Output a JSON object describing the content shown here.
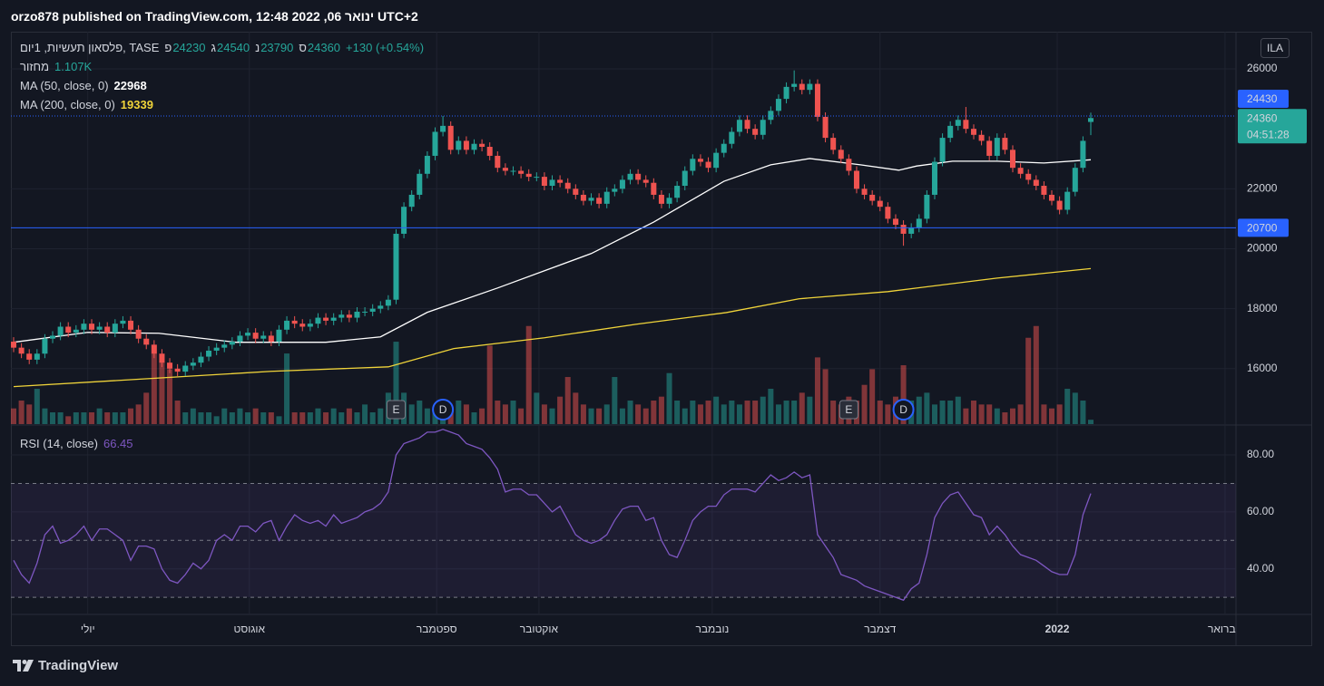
{
  "header": {
    "byline": "orzo878 published on TradingView.com, ינואר 06, 2022 12:48 UTC+2"
  },
  "footer": {
    "brand": "TradingView"
  },
  "chart_data": {
    "type": "candlestick",
    "symbol": "פלסאון תעשיות, 1יום, TASE",
    "ohlc_labels": [
      "פ",
      "ג",
      "נ",
      "ס"
    ],
    "change": "+130 (+0.54%)",
    "currency": "ILA",
    "countdown": "04:51:28",
    "colors": {
      "up": "#26a69a",
      "down": "#ef5350"
    },
    "xlim": [
      -0.35,
      156.6
    ],
    "xticks": [
      {
        "value": 9.5,
        "label": "יולי"
      },
      {
        "value": 30.2,
        "label": "אוגוסט"
      },
      {
        "value": 54.2,
        "label": "ספטמבר"
      },
      {
        "value": 67.3,
        "label": "אוקטובר"
      },
      {
        "value": 89.5,
        "label": "נובמבר"
      },
      {
        "value": 111,
        "label": "דצמבר"
      },
      {
        "value": 133.7,
        "label": "2022",
        "bold": true
      },
      {
        "value": 155.2,
        "label": "פברואר"
      }
    ],
    "ylim": [
      14150,
      27240
    ],
    "yticks": [
      16000,
      18000,
      20000,
      22000,
      26000
    ],
    "grid": true,
    "open": [
      16900,
      16700,
      16500,
      16300,
      16500,
      17000,
      17100,
      17400,
      17200,
      17300,
      17500,
      17300,
      17400,
      17200,
      17500,
      17600,
      17300,
      17000,
      16800,
      16500,
      16200,
      16000,
      15900,
      16100,
      16200,
      16400,
      16600,
      16700,
      16800,
      16900,
      17100,
      17200,
      17000,
      17100,
      16900,
      17300,
      17600,
      17500,
      17400,
      17500,
      17700,
      17600,
      17700,
      17800,
      17700,
      17900,
      17900,
      18000,
      18100,
      18300,
      20500,
      21400,
      21800,
      22500,
      23100,
      23900,
      24100,
      23300,
      23600,
      23300,
      23500,
      23400,
      23100,
      22700,
      22600,
      22600,
      22500,
      22400,
      22400,
      22100,
      22300,
      22200,
      22000,
      21800,
      21600,
      21700,
      21500,
      21900,
      22000,
      22300,
      22500,
      22300,
      22200,
      21800,
      21500,
      21700,
      22100,
      22600,
      23000,
      22900,
      22700,
      23200,
      23500,
      23900,
      24300,
      24000,
      23800,
      24300,
      24600,
      25000,
      25400,
      25500,
      25300,
      25500,
      24400,
      23700,
      23300,
      23000,
      22600,
      22000,
      21800,
      21600,
      21400,
      21000,
      20800,
      20500,
      20700,
      21000,
      21800,
      22900,
      23700,
      24100,
      24300,
      24000,
      23800,
      23600,
      23100,
      23700,
      23300,
      22700,
      22500,
      22300,
      22100,
      21800,
      21600,
      21300,
      21900,
      22700,
      24230
    ],
    "high": [
      17050,
      16850,
      16650,
      16650,
      17150,
      17250,
      17550,
      17550,
      17450,
      17650,
      17650,
      17550,
      17550,
      17650,
      17750,
      17750,
      17450,
      17150,
      16950,
      16650,
      16350,
      16150,
      16250,
      16350,
      16550,
      16750,
      16850,
      16950,
      17050,
      17250,
      17350,
      17350,
      17250,
      17250,
      17450,
      17750,
      17750,
      17650,
      17650,
      17850,
      17850,
      17850,
      17950,
      17950,
      18050,
      18050,
      18150,
      18250,
      18450,
      20650,
      21550,
      21950,
      22650,
      23250,
      24050,
      24430,
      24250,
      23750,
      23750,
      23650,
      23650,
      23550,
      23250,
      22850,
      22750,
      22750,
      22650,
      22550,
      22550,
      22450,
      22450,
      22350,
      22150,
      21950,
      21850,
      21850,
      22050,
      22150,
      22450,
      22650,
      22650,
      22450,
      22350,
      21950,
      21850,
      22250,
      22750,
      23150,
      23150,
      23050,
      23350,
      23650,
      24050,
      24450,
      24450,
      24150,
      24450,
      24750,
      25150,
      25550,
      25950,
      25650,
      25650,
      25650,
      24550,
      23850,
      23450,
      23150,
      22750,
      22150,
      21950,
      21750,
      21550,
      21150,
      20950,
      20850,
      21150,
      21950,
      23050,
      23850,
      24250,
      24450,
      24730,
      24150,
      23950,
      23750,
      23850,
      23850,
      23450,
      22850,
      22650,
      22450,
      22250,
      21950,
      21750,
      22050,
      22850,
      23750,
      24540
    ],
    "low": [
      16550,
      16350,
      16150,
      16150,
      16350,
      16850,
      16950,
      17050,
      17050,
      17150,
      17150,
      17150,
      17050,
      17050,
      17350,
      17150,
      16850,
      16650,
      16350,
      16050,
      15850,
      15750,
      15750,
      15950,
      16050,
      16250,
      16450,
      16550,
      16650,
      16750,
      16950,
      16850,
      16850,
      16750,
      16750,
      17150,
      17350,
      17250,
      17250,
      17350,
      17450,
      17450,
      17550,
      17550,
      17550,
      17750,
      17750,
      17850,
      17950,
      18150,
      20350,
      21250,
      21650,
      22350,
      22950,
      23750,
      23150,
      23150,
      23150,
      23150,
      23250,
      22950,
      22550,
      22450,
      22450,
      22350,
      22250,
      22250,
      21950,
      21950,
      22050,
      21850,
      21650,
      21450,
      21450,
      21350,
      21350,
      21750,
      21850,
      22150,
      22150,
      22050,
      21650,
      21350,
      21350,
      21550,
      21950,
      22450,
      22750,
      22550,
      22550,
      23050,
      23350,
      23750,
      23850,
      23650,
      23650,
      24150,
      24450,
      24850,
      25250,
      25150,
      25150,
      24250,
      23550,
      23150,
      22850,
      22450,
      21850,
      21650,
      21450,
      21250,
      20850,
      20650,
      20100,
      20350,
      20550,
      20850,
      21650,
      22750,
      23550,
      23950,
      23850,
      23650,
      23450,
      22950,
      22950,
      23150,
      22550,
      22350,
      22150,
      21950,
      21650,
      21450,
      21150,
      21150,
      21750,
      22550,
      23790
    ],
    "close": [
      16700,
      16500,
      16300,
      16500,
      17000,
      17100,
      17400,
      17200,
      17300,
      17500,
      17300,
      17400,
      17200,
      17500,
      17600,
      17300,
      17000,
      16800,
      16500,
      16200,
      16000,
      15900,
      16100,
      16200,
      16400,
      16600,
      16700,
      16800,
      16900,
      17100,
      17200,
      17000,
      17100,
      16900,
      17300,
      17600,
      17500,
      17400,
      17500,
      17700,
      17600,
      17700,
      17800,
      17700,
      17900,
      17900,
      18000,
      18100,
      18300,
      20500,
      21400,
      21800,
      22500,
      23100,
      23900,
      24100,
      23300,
      23600,
      23300,
      23500,
      23400,
      23100,
      22700,
      22600,
      22600,
      22500,
      22400,
      22400,
      22100,
      22300,
      22200,
      22000,
      21800,
      21600,
      21700,
      21500,
      21900,
      22000,
      22300,
      22500,
      22300,
      22200,
      21800,
      21500,
      21700,
      22100,
      22600,
      23000,
      22900,
      22700,
      23200,
      23500,
      23900,
      24300,
      24000,
      23800,
      24300,
      24600,
      25000,
      25400,
      25500,
      25300,
      25500,
      24400,
      23700,
      23300,
      23000,
      22600,
      22000,
      21800,
      21600,
      21400,
      21000,
      20800,
      20500,
      20700,
      21000,
      21800,
      22900,
      23700,
      24100,
      24300,
      24000,
      23800,
      23600,
      23100,
      23700,
      23300,
      22700,
      22500,
      22300,
      22100,
      21800,
      21600,
      21300,
      21900,
      22700,
      23600,
      24360
    ],
    "volume": {
      "name": "מחזור",
      "value_label": "1.107K",
      "ylim": [
        0,
        100
      ],
      "values": [
        4,
        6,
        5,
        9,
        4,
        3,
        3,
        2,
        3,
        3,
        3,
        4,
        3,
        3,
        3,
        4,
        5,
        8,
        18,
        16,
        14,
        6,
        3,
        4,
        3,
        3,
        2,
        4,
        3,
        4,
        3,
        4,
        3,
        3,
        2,
        18,
        3,
        3,
        3,
        4,
        3,
        4,
        3,
        4,
        3,
        5,
        3,
        4,
        8,
        21,
        8,
        5,
        6,
        4,
        3,
        5,
        4,
        6,
        5,
        3,
        4,
        20,
        6,
        5,
        6,
        4,
        25,
        8,
        5,
        4,
        7,
        12,
        8,
        5,
        4,
        4,
        5,
        12,
        4,
        6,
        5,
        4,
        6,
        7,
        13,
        6,
        4,
        6,
        5,
        6,
        7,
        5,
        6,
        5,
        6,
        6,
        7,
        9,
        5,
        6,
        6,
        8,
        7,
        17,
        14,
        6,
        5,
        7,
        6,
        10,
        14,
        6,
        5,
        7,
        15,
        6,
        7,
        8,
        5,
        6,
        6,
        7,
        4,
        6,
        5,
        5,
        4,
        3,
        4,
        5,
        22,
        25,
        5,
        4,
        5,
        9,
        8,
        6,
        1.107
      ]
    },
    "series": [
      {
        "name": "MA (50, close, 0)",
        "color": "#ffffff",
        "x": [
          0,
          9.5,
          18.6,
          28.5,
          40,
          47,
          53,
          62,
          74,
          82,
          91,
          97,
          102,
          108.5,
          113.4,
          115.7,
          120.3,
          126,
          132,
          138
        ],
        "values": [
          16880,
          17210,
          17180,
          16880,
          16880,
          17060,
          17880,
          18690,
          19840,
          20890,
          22250,
          22800,
          23010,
          22800,
          22620,
          22760,
          22920,
          22920,
          22860,
          22968
        ]
      },
      {
        "name": "MA (200, close, 0)",
        "color": "#f0d43a",
        "x": [
          0,
          33,
          48,
          56.4,
          68,
          79.7,
          91.3,
          100.6,
          112,
          126,
          138
        ],
        "values": [
          15400,
          15910,
          16060,
          16670,
          17030,
          17480,
          17870,
          18330,
          18570,
          19020,
          19339
        ]
      }
    ],
    "hlines": [
      {
        "value": 24430,
        "style": "dotted"
      },
      {
        "value": 20700,
        "style": "solid"
      }
    ],
    "hline_color": "#2962ff",
    "events": [
      {
        "label": "E",
        "x": 49,
        "shape": "square"
      },
      {
        "label": "D",
        "x": 55,
        "shape": "circle"
      },
      {
        "label": "E",
        "x": 107,
        "shape": "square"
      },
      {
        "label": "D",
        "x": 114,
        "shape": "circle"
      }
    ],
    "rsi": {
      "name": "RSI (14, close)",
      "color": "#7e57c2",
      "ylim": [
        24,
        90.2
      ],
      "yticks": [
        {
          "value": 40,
          "label": "40.00"
        },
        {
          "value": 60,
          "label": "60.00"
        },
        {
          "value": 80,
          "label": "80.00"
        }
      ],
      "band": [
        30,
        70
      ],
      "midline": 50,
      "values": [
        43,
        38,
        35,
        42,
        52,
        55,
        49,
        50,
        52,
        55,
        50,
        54,
        54,
        52,
        50,
        43,
        48,
        48,
        47,
        40,
        36,
        35,
        38,
        42,
        40,
        43,
        50,
        52,
        50,
        55,
        55,
        53,
        56,
        57,
        50,
        55,
        59,
        57,
        56,
        57,
        55,
        59,
        56,
        57,
        58,
        60,
        61,
        63,
        67,
        80,
        84,
        85,
        86,
        88,
        88,
        89,
        88,
        87,
        84,
        83,
        82,
        79,
        75,
        67,
        68,
        68,
        66,
        66,
        63,
        60,
        62,
        57,
        52,
        50,
        49,
        50,
        52,
        57,
        61,
        62,
        62,
        57,
        58,
        50,
        45,
        44,
        50,
        57,
        60,
        62,
        62,
        66,
        68,
        68,
        68,
        67,
        70,
        73,
        71,
        72,
        74,
        72,
        73,
        52,
        48,
        44,
        38,
        37,
        36,
        34,
        33,
        32,
        31,
        30,
        29,
        33,
        35,
        45,
        58,
        63,
        66,
        67,
        63,
        59,
        58,
        52,
        55,
        52,
        48,
        45,
        44,
        43,
        41,
        39,
        38,
        38,
        45,
        59,
        66.45
      ]
    }
  }
}
